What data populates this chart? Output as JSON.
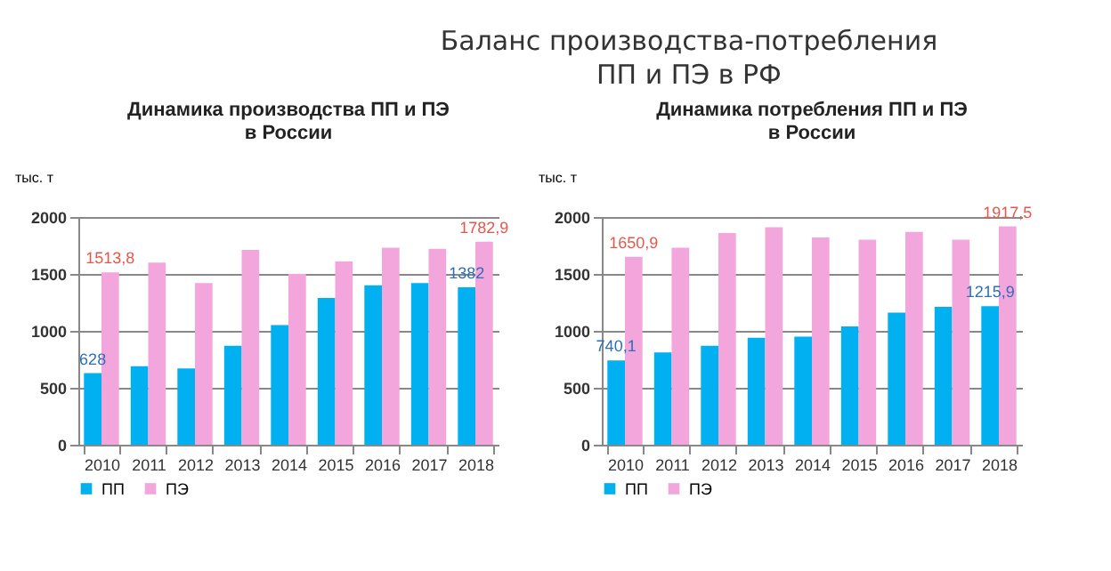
{
  "chart_data": [
    {
      "type": "bar",
      "title": "Динамика производства ПП и ПЭ\nв России",
      "ylabel": "тыс. т",
      "annotations": [
        "Баланс производства-потребления\nПП и ПЭ в РФ"
      ],
      "categories": [
        "2010",
        "2011",
        "2012",
        "2013",
        "2014",
        "2015",
        "2016",
        "2017",
        "2018"
      ],
      "series": [
        {
          "name": "ПП",
          "color": "#00b0f0",
          "values": [
            628,
            690,
            670,
            870,
            1050,
            1290,
            1400,
            1420,
            1382
          ],
          "value_labels": [
            "628",
            null,
            null,
            null,
            null,
            null,
            null,
            null,
            "1382"
          ]
        },
        {
          "name": "ПЭ",
          "color": "#f3a6dc",
          "values": [
            1513.8,
            1600,
            1420,
            1710,
            1500,
            1610,
            1730,
            1720,
            1782.9
          ],
          "value_labels": [
            "1513,8",
            null,
            null,
            null,
            null,
            null,
            null,
            null,
            "1782,9"
          ]
        }
      ],
      "ylim": [
        0,
        2000
      ],
      "yticks": [
        0,
        500,
        1000,
        1500,
        2000
      ],
      "grid": "y",
      "legend": "bottom"
    },
    {
      "type": "bar",
      "title": "Динамика потребления ПП и ПЭ\nв России",
      "ylabel": "тыс. т",
      "categories": [
        "2010",
        "2011",
        "2012",
        "2013",
        "2014",
        "2015",
        "2016",
        "2017",
        "2018"
      ],
      "series": [
        {
          "name": "ПП",
          "color": "#00b0f0",
          "values": [
            740.1,
            810,
            870,
            940,
            950,
            1040,
            1160,
            1210,
            1215.9
          ],
          "value_labels": [
            "740,1",
            null,
            null,
            null,
            null,
            null,
            null,
            null,
            "1215,9"
          ]
        },
        {
          "name": "ПЭ",
          "color": "#f3a6dc",
          "values": [
            1650.9,
            1730,
            1860,
            1910,
            1820,
            1800,
            1870,
            1800,
            1917.5
          ],
          "value_labels": [
            "1650,9",
            null,
            null,
            null,
            null,
            null,
            null,
            null,
            "1917,5"
          ]
        }
      ],
      "ylim": [
        0,
        2000
      ],
      "yticks": [
        0,
        500,
        1000,
        1500,
        2000
      ],
      "grid": "y",
      "legend": "bottom"
    }
  ]
}
